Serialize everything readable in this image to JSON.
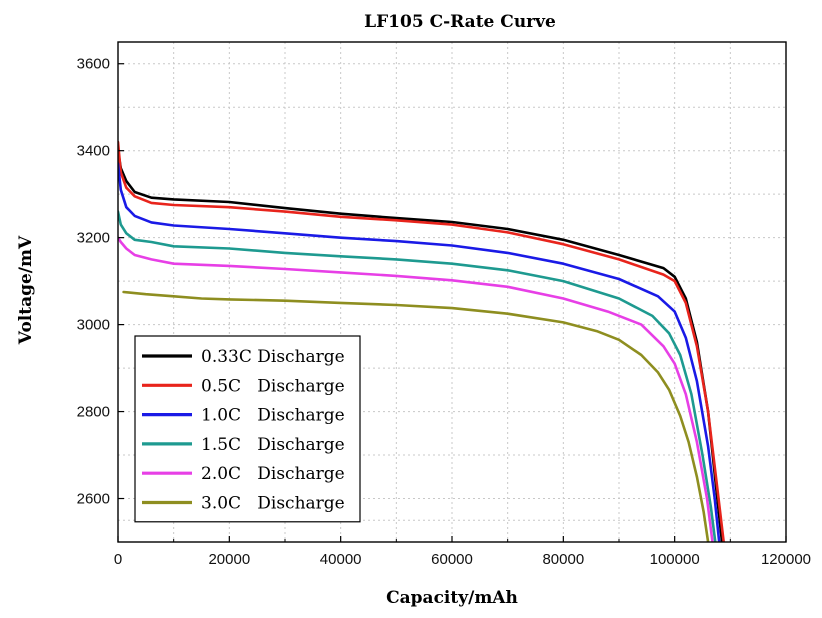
{
  "chart_data": {
    "type": "line",
    "title": "LF105 C-Rate Curve",
    "xlabel": "Capacity/mAh",
    "ylabel": "Voltage/mV",
    "xlim": [
      0,
      120000
    ],
    "ylim": [
      2500,
      3650
    ],
    "xticks": [
      0,
      20000,
      40000,
      60000,
      80000,
      100000,
      120000
    ],
    "yticks": [
      2600,
      2800,
      3000,
      3200,
      3400,
      3600
    ],
    "grid": true,
    "legend_position": "bottom-left",
    "series": [
      {
        "name": "0.33C Discharge",
        "color": "#000000",
        "points": [
          [
            0,
            3400
          ],
          [
            500,
            3360
          ],
          [
            1500,
            3330
          ],
          [
            3000,
            3305
          ],
          [
            6000,
            3292
          ],
          [
            10000,
            3288
          ],
          [
            20000,
            3282
          ],
          [
            30000,
            3268
          ],
          [
            40000,
            3255
          ],
          [
            50000,
            3245
          ],
          [
            60000,
            3236
          ],
          [
            70000,
            3220
          ],
          [
            80000,
            3195
          ],
          [
            90000,
            3160
          ],
          [
            98000,
            3130
          ],
          [
            100000,
            3110
          ],
          [
            102000,
            3060
          ],
          [
            104000,
            2960
          ],
          [
            106000,
            2800
          ],
          [
            107500,
            2620
          ],
          [
            108500,
            2500
          ]
        ]
      },
      {
        "name": "0.5C   Discharge",
        "color": "#e8241c",
        "points": [
          [
            0,
            3420
          ],
          [
            500,
            3350
          ],
          [
            1500,
            3315
          ],
          [
            3000,
            3295
          ],
          [
            6000,
            3280
          ],
          [
            10000,
            3275
          ],
          [
            20000,
            3270
          ],
          [
            30000,
            3260
          ],
          [
            40000,
            3248
          ],
          [
            50000,
            3240
          ],
          [
            60000,
            3230
          ],
          [
            70000,
            3212
          ],
          [
            80000,
            3185
          ],
          [
            90000,
            3150
          ],
          [
            98000,
            3115
          ],
          [
            100000,
            3100
          ],
          [
            102000,
            3050
          ],
          [
            104000,
            2950
          ],
          [
            106000,
            2800
          ],
          [
            107700,
            2620
          ],
          [
            108800,
            2500
          ]
        ]
      },
      {
        "name": "1.0C   Discharge",
        "color": "#1a1ae6",
        "points": [
          [
            0,
            3370
          ],
          [
            500,
            3310
          ],
          [
            1500,
            3270
          ],
          [
            3000,
            3250
          ],
          [
            6000,
            3235
          ],
          [
            10000,
            3228
          ],
          [
            20000,
            3220
          ],
          [
            30000,
            3210
          ],
          [
            40000,
            3200
          ],
          [
            50000,
            3192
          ],
          [
            60000,
            3182
          ],
          [
            70000,
            3165
          ],
          [
            80000,
            3140
          ],
          [
            90000,
            3105
          ],
          [
            97000,
            3065
          ],
          [
            100000,
            3030
          ],
          [
            102000,
            2970
          ],
          [
            104000,
            2870
          ],
          [
            106000,
            2720
          ],
          [
            107200,
            2600
          ],
          [
            108000,
            2500
          ]
        ]
      },
      {
        "name": "1.5C   Discharge",
        "color": "#1e9a90",
        "points": [
          [
            0,
            3260
          ],
          [
            500,
            3230
          ],
          [
            1500,
            3210
          ],
          [
            3000,
            3195
          ],
          [
            6000,
            3190
          ],
          [
            10000,
            3180
          ],
          [
            20000,
            3175
          ],
          [
            30000,
            3165
          ],
          [
            40000,
            3157
          ],
          [
            50000,
            3150
          ],
          [
            60000,
            3140
          ],
          [
            70000,
            3125
          ],
          [
            80000,
            3100
          ],
          [
            90000,
            3060
          ],
          [
            96000,
            3020
          ],
          [
            99000,
            2980
          ],
          [
            101000,
            2930
          ],
          [
            103000,
            2840
          ],
          [
            105000,
            2700
          ],
          [
            106500,
            2580
          ],
          [
            107300,
            2500
          ]
        ]
      },
      {
        "name": "2.0C   Discharge",
        "color": "#e73fe6",
        "points": [
          [
            0,
            3200
          ],
          [
            500,
            3190
          ],
          [
            1500,
            3175
          ],
          [
            3000,
            3160
          ],
          [
            6000,
            3150
          ],
          [
            10000,
            3140
          ],
          [
            20000,
            3135
          ],
          [
            30000,
            3128
          ],
          [
            40000,
            3120
          ],
          [
            50000,
            3112
          ],
          [
            60000,
            3102
          ],
          [
            70000,
            3087
          ],
          [
            80000,
            3060
          ],
          [
            88000,
            3030
          ],
          [
            94000,
            3000
          ],
          [
            98000,
            2950
          ],
          [
            100000,
            2910
          ],
          [
            102000,
            2840
          ],
          [
            104000,
            2730
          ],
          [
            105800,
            2600
          ],
          [
            106800,
            2500
          ]
        ]
      },
      {
        "name": "3.0C   Discharge",
        "color": "#8e8e20",
        "points": [
          [
            1000,
            3075
          ],
          [
            5000,
            3070
          ],
          [
            10000,
            3065
          ],
          [
            15000,
            3060
          ],
          [
            20000,
            3058
          ],
          [
            30000,
            3055
          ],
          [
            40000,
            3050
          ],
          [
            50000,
            3045
          ],
          [
            60000,
            3038
          ],
          [
            70000,
            3025
          ],
          [
            80000,
            3005
          ],
          [
            86000,
            2985
          ],
          [
            90000,
            2965
          ],
          [
            94000,
            2930
          ],
          [
            97000,
            2890
          ],
          [
            99000,
            2850
          ],
          [
            101000,
            2790
          ],
          [
            102500,
            2730
          ],
          [
            104000,
            2650
          ],
          [
            105200,
            2570
          ],
          [
            106000,
            2500
          ]
        ]
      }
    ]
  }
}
